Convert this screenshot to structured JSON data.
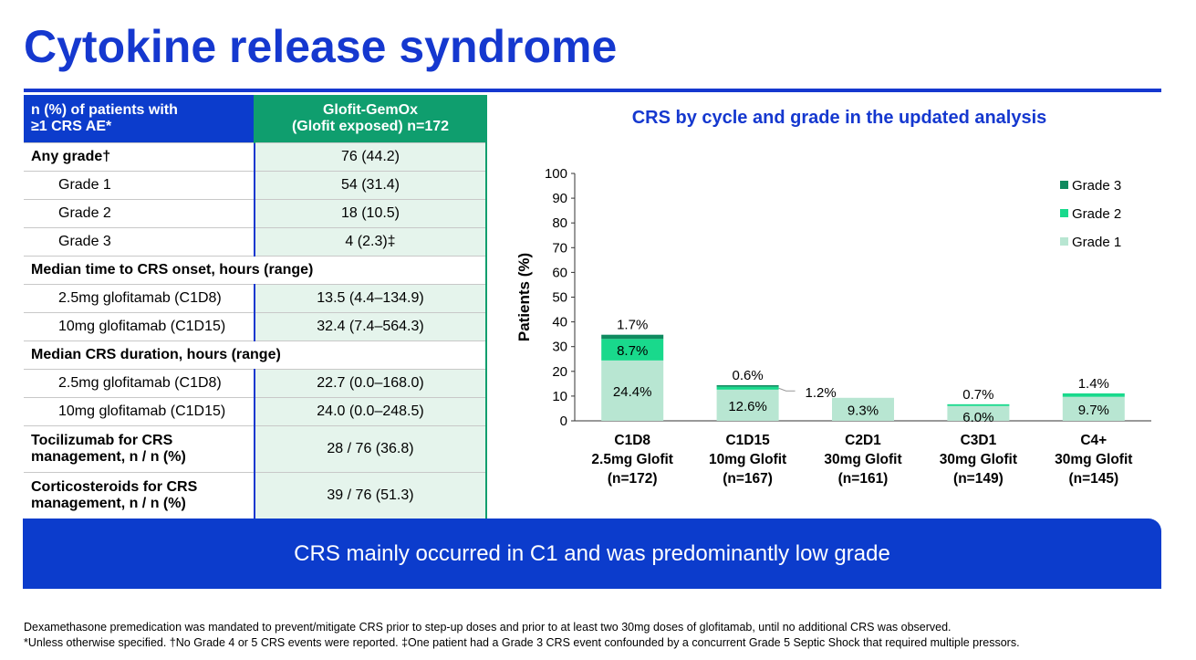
{
  "title": "Cytokine release syndrome",
  "table": {
    "header": {
      "left": [
        "n (%) of patients with",
        "≥1 CRS AE*"
      ],
      "right": [
        "Glofit-GemOx",
        "(Glofit exposed) n=172"
      ]
    },
    "rows": [
      {
        "label": "Any grade†",
        "value": "76 (44.2)",
        "style": "b"
      },
      {
        "label": "Grade 1",
        "value": "54 (31.4)",
        "style": "i"
      },
      {
        "label": "Grade 2",
        "value": "18 (10.5)",
        "style": "i"
      },
      {
        "label": "Grade 3",
        "value": "4 (2.3)‡",
        "style": "i"
      },
      {
        "label": "Median time to CRS onset, hours (range)",
        "value": "",
        "style": "sec"
      },
      {
        "label": "2.5mg glofitamab (C1D8)",
        "value": "13.5 (4.4–134.9)",
        "style": "i"
      },
      {
        "label": "10mg glofitamab (C1D15)",
        "value": "32.4 (7.4–564.3)",
        "style": "i"
      },
      {
        "label": "Median CRS duration, hours (range)",
        "value": "",
        "style": "sec"
      },
      {
        "label": "2.5mg glofitamab (C1D8)",
        "value": "22.7 (0.0–168.0)",
        "style": "i"
      },
      {
        "label": "10mg glofitamab (C1D15)",
        "value": "24.0 (0.0–248.5)",
        "style": "i"
      },
      {
        "label": "Tocilizumab for CRS management, n / n (%)",
        "value": "28 / 76 (36.8)",
        "style": "tall"
      },
      {
        "label": "Corticosteroids for CRS management, n / n (%)",
        "value": "39 / 76 (51.3)",
        "style": "tall"
      }
    ]
  },
  "chart_data": {
    "type": "bar",
    "stacked": true,
    "title": "CRS by cycle and grade in the updated analysis",
    "ylabel": "Patients (%)",
    "ylim": [
      0,
      100
    ],
    "yticks": [
      0,
      10,
      20,
      30,
      40,
      50,
      60,
      70,
      80,
      90,
      100
    ],
    "categories": [
      [
        "C1D8",
        "2.5mg Glofit",
        "(n=172)"
      ],
      [
        "C1D15",
        "10mg Glofit",
        "(n=167)"
      ],
      [
        "C2D1",
        "30mg Glofit",
        "(n=161)"
      ],
      [
        "C3D1",
        "30mg Glofit",
        "(n=149)"
      ],
      [
        "C4+",
        "30mg Glofit",
        "(n=145)"
      ]
    ],
    "series": [
      {
        "name": "Grade 1",
        "color": "#b8e6d2",
        "values": [
          24.4,
          12.6,
          9.3,
          6.0,
          9.7
        ]
      },
      {
        "name": "Grade 2",
        "color": "#19d98c",
        "values": [
          8.7,
          1.2,
          0,
          0.7,
          1.4
        ]
      },
      {
        "name": "Grade 3",
        "color": "#0f8a5f",
        "values": [
          1.7,
          0.6,
          0,
          0,
          0
        ]
      }
    ],
    "labels": [
      [
        "24.4%",
        "8.7%",
        "1.7%"
      ],
      [
        "12.6%",
        "1.2%",
        "0.6%"
      ],
      [
        "9.3%",
        "",
        ""
      ],
      [
        "6.0%",
        "0.7%",
        ""
      ],
      [
        "9.7%",
        "1.4%",
        ""
      ]
    ],
    "legend": "top-right",
    "grid": false
  },
  "banner": "CRS mainly occurred in C1 and was predominantly low grade",
  "footnotes": [
    "Dexamethasone premedication was mandated to prevent/mitigate CRS prior to step-up doses and prior to at least two 30mg doses of glofitamab, until no additional CRS was observed.",
    "*Unless otherwise specified. †No Grade 4 or 5 CRS events were reported. ‡One patient had a Grade 3 CRS event confounded by a concurrent Grade 5 Septic Shock that required multiple pressors."
  ]
}
